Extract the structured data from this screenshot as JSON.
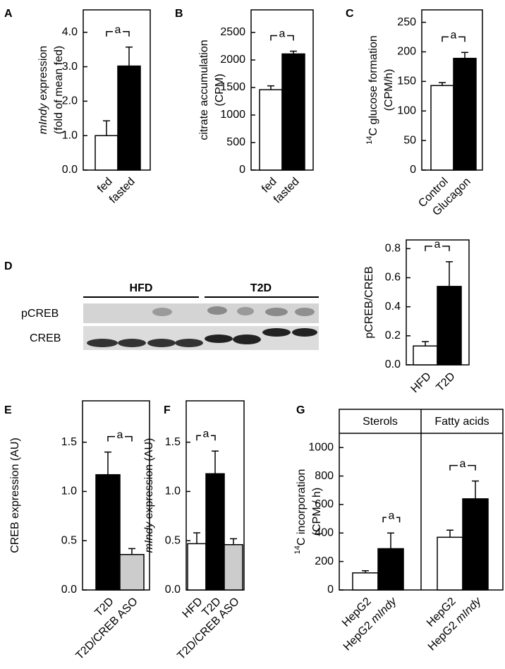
{
  "chart_data": [
    {
      "type": "bar",
      "panel_label": "A",
      "ylabel": [
        [
          {
            "text": "mIndy",
            "style": "italic"
          },
          {
            "text": " expression"
          }
        ],
        "(fold of mean fed)"
      ],
      "categories": [
        "fed",
        "fasted"
      ],
      "values": [
        1.0,
        3.02
      ],
      "errors": [
        0.43,
        0.55
      ],
      "colors": [
        "#ffffff",
        "#000000"
      ],
      "ylim": [
        0,
        4.65
      ],
      "yticks": [
        {
          "value": 0,
          "label": "0.0"
        },
        {
          "value": 1,
          "label": "1.0"
        },
        {
          "value": 2,
          "label": "2.0"
        },
        {
          "value": 3,
          "label": "3.0"
        },
        {
          "value": 4,
          "label": "4.0"
        }
      ],
      "annotation": "a"
    },
    {
      "type": "bar",
      "panel_label": "B",
      "ylabel": [
        "citrate accumulation",
        "(CPM)"
      ],
      "categories": [
        "fed",
        "fasted"
      ],
      "values": [
        1460,
        2110
      ],
      "errors": [
        70,
        50
      ],
      "colors": [
        "#ffffff",
        "#000000"
      ],
      "ylim": [
        0,
        2910
      ],
      "yticks": [
        0,
        500,
        1000,
        1500,
        2000,
        2500
      ],
      "annotation": "a"
    },
    {
      "type": "bar",
      "panel_label": "C",
      "ylabel": [
        [
          {
            "text": "14",
            "style": "sup"
          },
          {
            "text": "C glucose formation"
          }
        ],
        "(CPM/h)"
      ],
      "categories": [
        "Control",
        "Glucagon"
      ],
      "values": [
        143,
        189
      ],
      "errors": [
        5,
        10
      ],
      "colors": [
        "#ffffff",
        "#000000"
      ],
      "ylim": [
        0,
        271
      ],
      "yticks": [
        0,
        50,
        100,
        150,
        200,
        250
      ],
      "annotation": "a"
    },
    {
      "type": "bar",
      "panel_label": "D",
      "ylabel": [
        "pCREB/CREB"
      ],
      "categories": [
        "HFD",
        "T2D"
      ],
      "values": [
        0.13,
        0.54
      ],
      "errors": [
        0.03,
        0.17
      ],
      "colors": [
        "#ffffff",
        "#000000"
      ],
      "ylim": [
        0,
        0.86
      ],
      "yticks": [
        {
          "value": 0,
          "label": "0.0"
        },
        {
          "value": 0.2,
          "label": "0.2"
        },
        {
          "value": 0.4,
          "label": "0.4"
        },
        {
          "value": 0.6,
          "label": "0.6"
        },
        {
          "value": 0.8,
          "label": "0.8"
        }
      ],
      "annotation": "a"
    },
    {
      "type": "bar",
      "panel_label": "E",
      "ylabel": [
        "CREB expression (AU)"
      ],
      "categories": [
        "T2D",
        "T2D/CREB ASO"
      ],
      "values": [
        1.17,
        0.36
      ],
      "errors": [
        0.23,
        0.06
      ],
      "colors": [
        "#000000",
        "#cccccc"
      ],
      "ylim": [
        0,
        1.92
      ],
      "yticks": [
        {
          "value": 0,
          "label": "0.0"
        },
        {
          "value": 0.5,
          "label": "0.5"
        },
        {
          "value": 1,
          "label": "1.0"
        },
        {
          "value": 1.5,
          "label": "1.5"
        }
      ],
      "annotation": "a"
    },
    {
      "type": "bar",
      "panel_label": "F",
      "ylabel": [
        [
          {
            "text": "mIndy",
            "style": "italic"
          },
          {
            "text": " expression (AU)"
          }
        ]
      ],
      "categories": [
        "HFD",
        "T2D",
        "T2D/CREB ASO"
      ],
      "values": [
        0.47,
        1.18,
        0.46
      ],
      "errors": [
        0.11,
        0.23,
        0.06
      ],
      "colors": [
        "#ffffff",
        "#000000",
        "#cccccc"
      ],
      "ylim": [
        0,
        1.92
      ],
      "yticks": [
        {
          "value": 0,
          "label": "0.0"
        },
        {
          "value": 0.5,
          "label": "0.5"
        },
        {
          "value": 1,
          "label": "1.0"
        },
        {
          "value": 1.5,
          "label": "1.5"
        }
      ],
      "annotation": "a"
    },
    {
      "type": "grouped-bar",
      "panel_label": "G",
      "ylabel": [
        [
          {
            "text": "14",
            "style": "sup"
          },
          {
            "text": "C incorporation"
          }
        ],
        "(CPM / h)"
      ],
      "ylim": [
        0,
        1100
      ],
      "yticks": [
        0,
        200,
        400,
        600,
        800,
        1000
      ],
      "groups": [
        {
          "name": "Sterols",
          "categories": [
            "HepG2",
            [
              {
                "text": "HepG2 "
              },
              {
                "text": "mIndy",
                "style": "italic"
              }
            ]
          ],
          "values": [
            120,
            290
          ],
          "errors": [
            15,
            110
          ],
          "colors": [
            "#ffffff",
            "#000000"
          ],
          "annotation": "a"
        },
        {
          "name": "Fatty acids",
          "categories": [
            "HepG2",
            [
              {
                "text": "HepG2 "
              },
              {
                "text": "mIndy",
                "style": "italic"
              }
            ]
          ],
          "values": [
            370,
            640
          ],
          "errors": [
            50,
            125
          ],
          "colors": [
            "#ffffff",
            "#000000"
          ],
          "annotation": "a"
        }
      ]
    }
  ],
  "blot": {
    "groups": [
      "HFD",
      "T2D"
    ],
    "rows": [
      "pCREB",
      "CREB"
    ]
  }
}
